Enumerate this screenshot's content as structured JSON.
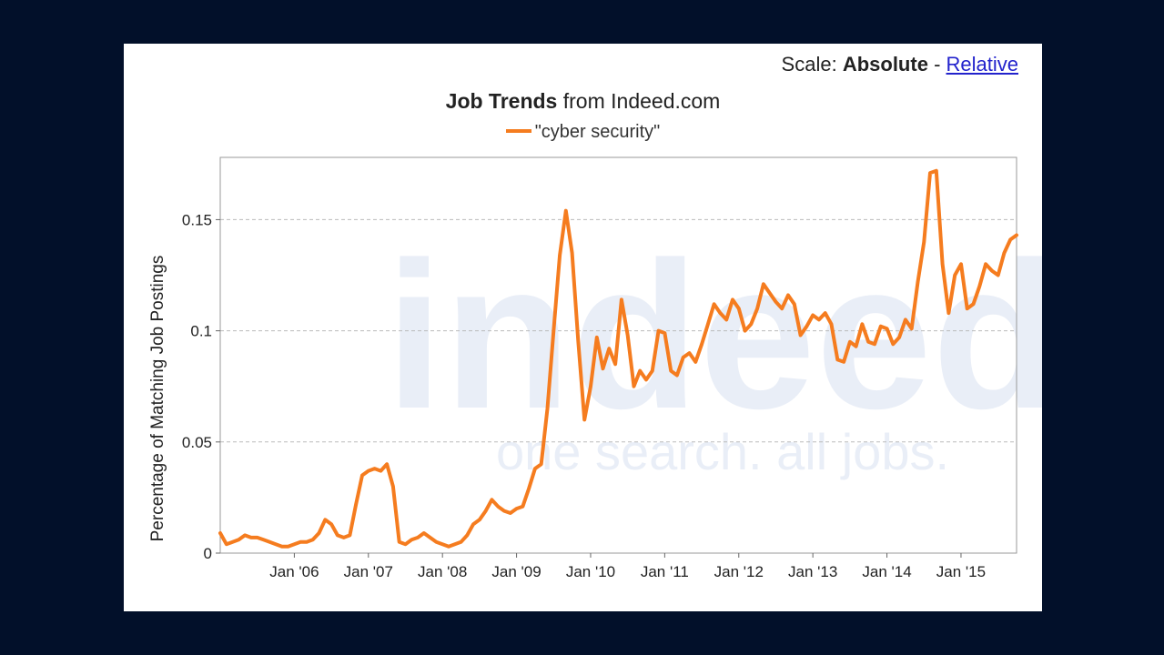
{
  "scale": {
    "label": "Scale:",
    "absolute": "Absolute",
    "separator": "-",
    "relative": "Relative"
  },
  "title": {
    "bold": "Job Trends",
    "rest": "from Indeed.com"
  },
  "watermark": {
    "logo": "indeed",
    "tagline": "one search. all jobs."
  },
  "colors": {
    "line": "#f57c1f",
    "grid": "#bbbbbb",
    "watermark": "#e9eef7"
  },
  "chart_data": {
    "type": "line",
    "title": "Job Trends from Indeed.com",
    "ylabel": "Percentage of Matching Job Postings",
    "xlabel": "",
    "ylim": [
      0,
      0.178
    ],
    "xlim": [
      "2005-01",
      "2015-10"
    ],
    "yticks": [
      {
        "value": 0,
        "label": "0"
      },
      {
        "value": 0.05,
        "label": "0.05"
      },
      {
        "value": 0.1,
        "label": "0.1"
      },
      {
        "value": 0.15,
        "label": "0.15"
      }
    ],
    "xticks": [
      {
        "value": "2006-01",
        "label": "Jan '06"
      },
      {
        "value": "2007-01",
        "label": "Jan '07"
      },
      {
        "value": "2008-01",
        "label": "Jan '08"
      },
      {
        "value": "2009-01",
        "label": "Jan '09"
      },
      {
        "value": "2010-01",
        "label": "Jan '10"
      },
      {
        "value": "2011-01",
        "label": "Jan '11"
      },
      {
        "value": "2012-01",
        "label": "Jan '12"
      },
      {
        "value": "2013-01",
        "label": "Jan '13"
      },
      {
        "value": "2014-01",
        "label": "Jan '14"
      },
      {
        "value": "2015-01",
        "label": "Jan '15"
      }
    ],
    "grid": {
      "y": true,
      "x": false,
      "style": "dashed"
    },
    "legend": "top-center",
    "series": [
      {
        "name": "\"cyber security\"",
        "color": "#f57c1f",
        "points": [
          [
            "2005-01",
            0.009
          ],
          [
            "2005-02",
            0.004
          ],
          [
            "2005-03",
            0.005
          ],
          [
            "2005-04",
            0.006
          ],
          [
            "2005-05",
            0.008
          ],
          [
            "2005-06",
            0.007
          ],
          [
            "2005-07",
            0.007
          ],
          [
            "2005-08",
            0.006
          ],
          [
            "2005-09",
            0.005
          ],
          [
            "2005-10",
            0.004
          ],
          [
            "2005-11",
            0.003
          ],
          [
            "2005-12",
            0.003
          ],
          [
            "2006-01",
            0.004
          ],
          [
            "2006-02",
            0.005
          ],
          [
            "2006-03",
            0.005
          ],
          [
            "2006-04",
            0.006
          ],
          [
            "2006-05",
            0.009
          ],
          [
            "2006-06",
            0.015
          ],
          [
            "2006-07",
            0.013
          ],
          [
            "2006-08",
            0.008
          ],
          [
            "2006-09",
            0.007
          ],
          [
            "2006-10",
            0.008
          ],
          [
            "2006-11",
            0.022
          ],
          [
            "2006-12",
            0.035
          ],
          [
            "2007-01",
            0.037
          ],
          [
            "2007-02",
            0.038
          ],
          [
            "2007-03",
            0.037
          ],
          [
            "2007-04",
            0.04
          ],
          [
            "2007-05",
            0.03
          ],
          [
            "2007-06",
            0.005
          ],
          [
            "2007-07",
            0.004
          ],
          [
            "2007-08",
            0.006
          ],
          [
            "2007-09",
            0.007
          ],
          [
            "2007-10",
            0.009
          ],
          [
            "2007-11",
            0.007
          ],
          [
            "2007-12",
            0.005
          ],
          [
            "2008-01",
            0.004
          ],
          [
            "2008-02",
            0.003
          ],
          [
            "2008-03",
            0.004
          ],
          [
            "2008-04",
            0.005
          ],
          [
            "2008-05",
            0.008
          ],
          [
            "2008-06",
            0.013
          ],
          [
            "2008-07",
            0.015
          ],
          [
            "2008-08",
            0.019
          ],
          [
            "2008-09",
            0.024
          ],
          [
            "2008-10",
            0.021
          ],
          [
            "2008-11",
            0.019
          ],
          [
            "2008-12",
            0.018
          ],
          [
            "2009-01",
            0.02
          ],
          [
            "2009-02",
            0.021
          ],
          [
            "2009-03",
            0.029
          ],
          [
            "2009-04",
            0.038
          ],
          [
            "2009-05",
            0.04
          ],
          [
            "2009-06",
            0.065
          ],
          [
            "2009-07",
            0.1
          ],
          [
            "2009-08",
            0.134
          ],
          [
            "2009-09",
            0.154
          ],
          [
            "2009-10",
            0.135
          ],
          [
            "2009-11",
            0.095
          ],
          [
            "2009-12",
            0.06
          ],
          [
            "2010-01",
            0.075
          ],
          [
            "2010-02",
            0.097
          ],
          [
            "2010-03",
            0.083
          ],
          [
            "2010-04",
            0.092
          ],
          [
            "2010-05",
            0.085
          ],
          [
            "2010-06",
            0.114
          ],
          [
            "2010-07",
            0.098
          ],
          [
            "2010-08",
            0.075
          ],
          [
            "2010-09",
            0.082
          ],
          [
            "2010-10",
            0.078
          ],
          [
            "2010-11",
            0.082
          ],
          [
            "2010-12",
            0.1
          ],
          [
            "2011-01",
            0.099
          ],
          [
            "2011-02",
            0.082
          ],
          [
            "2011-03",
            0.08
          ],
          [
            "2011-04",
            0.088
          ],
          [
            "2011-05",
            0.09
          ],
          [
            "2011-06",
            0.086
          ],
          [
            "2011-07",
            0.094
          ],
          [
            "2011-08",
            0.103
          ],
          [
            "2011-09",
            0.112
          ],
          [
            "2011-10",
            0.108
          ],
          [
            "2011-11",
            0.105
          ],
          [
            "2011-12",
            0.114
          ],
          [
            "2012-01",
            0.11
          ],
          [
            "2012-02",
            0.1
          ],
          [
            "2012-03",
            0.103
          ],
          [
            "2012-04",
            0.11
          ],
          [
            "2012-05",
            0.121
          ],
          [
            "2012-06",
            0.117
          ],
          [
            "2012-07",
            0.113
          ],
          [
            "2012-08",
            0.11
          ],
          [
            "2012-09",
            0.116
          ],
          [
            "2012-10",
            0.112
          ],
          [
            "2012-11",
            0.098
          ],
          [
            "2012-12",
            0.102
          ],
          [
            "2013-01",
            0.107
          ],
          [
            "2013-02",
            0.105
          ],
          [
            "2013-03",
            0.108
          ],
          [
            "2013-04",
            0.103
          ],
          [
            "2013-05",
            0.087
          ],
          [
            "2013-06",
            0.086
          ],
          [
            "2013-07",
            0.095
          ],
          [
            "2013-08",
            0.093
          ],
          [
            "2013-09",
            0.103
          ],
          [
            "2013-10",
            0.095
          ],
          [
            "2013-11",
            0.094
          ],
          [
            "2013-12",
            0.102
          ],
          [
            "2014-01",
            0.101
          ],
          [
            "2014-02",
            0.094
          ],
          [
            "2014-03",
            0.097
          ],
          [
            "2014-04",
            0.105
          ],
          [
            "2014-05",
            0.101
          ],
          [
            "2014-06",
            0.122
          ],
          [
            "2014-07",
            0.14
          ],
          [
            "2014-08",
            0.171
          ],
          [
            "2014-09",
            0.172
          ],
          [
            "2014-10",
            0.13
          ],
          [
            "2014-11",
            0.108
          ],
          [
            "2014-12",
            0.125
          ],
          [
            "2015-01",
            0.13
          ],
          [
            "2015-02",
            0.11
          ],
          [
            "2015-03",
            0.112
          ],
          [
            "2015-04",
            0.12
          ],
          [
            "2015-05",
            0.13
          ],
          [
            "2015-06",
            0.127
          ],
          [
            "2015-07",
            0.125
          ],
          [
            "2015-08",
            0.135
          ],
          [
            "2015-09",
            0.141
          ],
          [
            "2015-10",
            0.143
          ]
        ]
      }
    ]
  }
}
